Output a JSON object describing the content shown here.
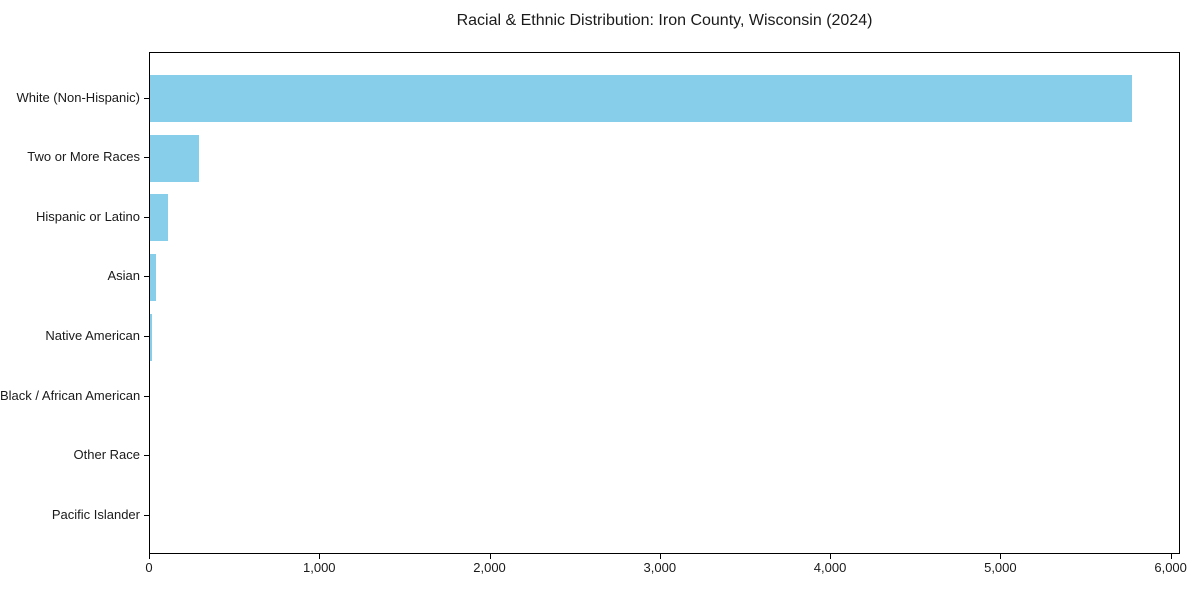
{
  "chart_data": {
    "type": "bar",
    "orientation": "horizontal",
    "title": "Racial & Ethnic Distribution: Iron County, Wisconsin (2024)",
    "categories": [
      "White (Non-Hispanic)",
      "Two or More Races",
      "Hispanic or Latino",
      "Asian",
      "Native American",
      "Black / African American",
      "Other Race",
      "Pacific Islander"
    ],
    "values": [
      5765,
      290,
      104,
      35,
      14,
      0,
      0,
      0
    ],
    "bar_color": "#87CEEB",
    "xlabel": "",
    "ylabel": "",
    "xlim": [
      0,
      6055
    ],
    "x_ticks": [
      0,
      1000,
      2000,
      3000,
      4000,
      5000,
      6000
    ],
    "x_tick_labels": [
      "0",
      "1,000",
      "2,000",
      "3,000",
      "4,000",
      "5,000",
      "6,000"
    ],
    "grid": false,
    "legend": "none",
    "plot_background": "#ffffff",
    "spine_color": "#000000"
  }
}
